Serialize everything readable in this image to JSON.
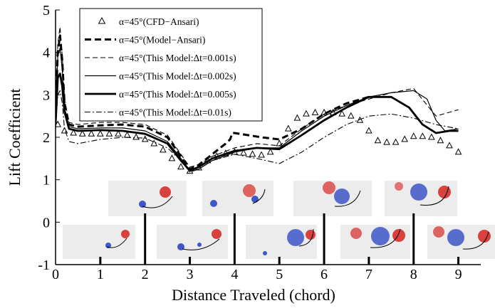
{
  "chart_data": {
    "type": "line",
    "xlabel": "Distance Traveled (chord)",
    "ylabel": "Lift Coefficient",
    "xlim": [
      0,
      9.5
    ],
    "ylim": [
      -1,
      5
    ],
    "xticks": [
      "0",
      "1",
      "2",
      "3",
      "4",
      "5",
      "6",
      "7",
      "8",
      "9"
    ],
    "yticks": [
      "-1",
      "0",
      "1",
      "2",
      "3",
      "4",
      "5"
    ],
    "grid": false,
    "legend_position": "top-left",
    "series": [
      {
        "name": "α=45°(CFD−Ansari)",
        "style": "triangle-markers",
        "color": "#000000",
        "x": [
          0.05,
          0.2,
          0.4,
          0.6,
          0.8,
          1.0,
          1.2,
          1.4,
          1.6,
          1.8,
          2.0,
          2.2,
          2.4,
          2.6,
          2.8,
          3.0,
          3.2,
          3.4,
          3.6,
          3.8,
          4.0,
          4.2,
          4.4,
          4.6,
          4.8,
          5.0,
          5.2,
          5.4,
          5.6,
          5.8,
          6.0,
          6.2,
          6.4,
          6.6,
          6.8,
          7.0,
          7.2,
          7.4,
          7.6,
          7.8,
          8.0,
          8.2,
          8.4,
          8.6,
          8.8,
          9.0
        ],
        "y": [
          2.3,
          2.15,
          2.1,
          2.08,
          2.08,
          2.08,
          2.08,
          2.08,
          2.05,
          2.0,
          1.95,
          1.85,
          1.7,
          1.5,
          1.3,
          1.2,
          1.28,
          1.45,
          1.55,
          1.62,
          1.65,
          1.63,
          1.6,
          1.58,
          1.65,
          1.85,
          2.2,
          2.45,
          2.55,
          2.58,
          2.58,
          2.58,
          2.55,
          2.5,
          2.4,
          2.15,
          1.92,
          1.88,
          1.88,
          1.95,
          2.02,
          2.02,
          2.0,
          1.92,
          1.8,
          1.65
        ]
      },
      {
        "name": "α=45°(Model−Ansari)",
        "style": "thick-dashed",
        "color": "#000000",
        "x": [
          0.0,
          0.05,
          0.1,
          0.15,
          0.2,
          0.3,
          0.5,
          1.0,
          1.5,
          2.0,
          2.5,
          2.8,
          3.0,
          3.2,
          3.5,
          3.8,
          3.9,
          3.95,
          4.0,
          4.3,
          4.6,
          5.0,
          5.5,
          6.0,
          6.5,
          7.0
        ],
        "y": [
          2.5,
          4.0,
          4.4,
          3.8,
          2.8,
          2.3,
          2.25,
          2.28,
          2.3,
          2.25,
          2.0,
          1.55,
          1.25,
          1.35,
          1.6,
          1.85,
          1.95,
          2.1,
          2.1,
          2.05,
          2.0,
          1.95,
          2.2,
          2.55,
          2.8,
          2.95
        ]
      },
      {
        "name": "α=45°(This Model:Δt=0.001s)",
        "style": "thin-dashed",
        "color": "#000000",
        "x": [
          0.0,
          0.05,
          0.1,
          0.15,
          0.2,
          0.3,
          0.5,
          1.0,
          1.5,
          2.0,
          2.5,
          2.8,
          3.0,
          3.2,
          3.5,
          4.0,
          4.5,
          5.0,
          5.5,
          6.0,
          6.5,
          7.0,
          7.5,
          8.0,
          8.5,
          9.0
        ],
        "y": [
          2.6,
          4.2,
          4.6,
          3.9,
          2.9,
          2.35,
          2.3,
          2.35,
          2.35,
          2.3,
          2.05,
          1.6,
          1.3,
          1.35,
          1.55,
          1.75,
          1.85,
          1.8,
          2.2,
          2.55,
          2.75,
          2.9,
          3.05,
          3.15,
          2.5,
          2.65
        ]
      },
      {
        "name": "α=45°(This Model:Δt=0.002s)",
        "style": "thin-solid",
        "color": "#000000",
        "x": [
          0.0,
          0.05,
          0.1,
          0.15,
          0.2,
          0.3,
          0.5,
          1.0,
          1.5,
          2.0,
          2.5,
          2.8,
          3.0,
          3.2,
          3.5,
          4.0,
          4.5,
          5.0,
          5.5,
          6.0,
          6.5,
          7.0,
          7.5,
          8.0,
          8.3,
          8.5,
          8.7,
          9.0
        ],
        "y": [
          2.4,
          3.9,
          4.1,
          3.6,
          2.7,
          2.25,
          2.2,
          2.22,
          2.22,
          2.15,
          1.9,
          1.5,
          1.2,
          1.25,
          1.45,
          1.65,
          1.75,
          1.75,
          2.15,
          2.5,
          2.75,
          2.95,
          3.05,
          3.1,
          2.9,
          2.4,
          2.15,
          2.2
        ]
      },
      {
        "name": "α=45°(This Model:Δt=0.005s)",
        "style": "thick-solid",
        "color": "#000000",
        "x": [
          0.0,
          0.05,
          0.1,
          0.15,
          0.2,
          0.3,
          0.5,
          1.0,
          1.5,
          2.0,
          2.5,
          2.8,
          3.0,
          3.2,
          3.5,
          4.0,
          4.5,
          5.0,
          5.5,
          6.0,
          6.5,
          7.0,
          7.5,
          7.9,
          8.2,
          8.5,
          8.8,
          9.0
        ],
        "y": [
          2.3,
          3.4,
          3.5,
          3.2,
          2.6,
          2.2,
          2.15,
          2.17,
          2.15,
          2.08,
          1.85,
          1.45,
          1.22,
          1.3,
          1.5,
          1.68,
          1.75,
          1.72,
          2.05,
          2.4,
          2.7,
          2.95,
          2.95,
          2.7,
          2.3,
          2.1,
          2.15,
          2.15
        ]
      },
      {
        "name": "α=45°(This Model:Δt=0.01s)",
        "style": "dash-dot",
        "color": "#000000",
        "x": [
          0.0,
          0.05,
          0.1,
          0.15,
          0.2,
          0.3,
          0.5,
          1.0,
          1.5,
          2.0,
          2.5,
          2.8,
          3.0,
          3.2,
          3.5,
          4.0,
          4.5,
          5.0,
          5.5,
          6.0,
          6.5,
          7.0,
          7.5,
          8.0,
          8.5,
          9.0
        ],
        "y": [
          2.2,
          3.0,
          3.1,
          2.8,
          2.2,
          1.9,
          1.85,
          1.95,
          2.0,
          1.98,
          1.75,
          1.45,
          1.18,
          1.25,
          1.45,
          1.6,
          1.5,
          1.38,
          1.65,
          2.0,
          2.3,
          2.5,
          2.55,
          2.45,
          2.3,
          2.2
        ]
      }
    ],
    "vertical_markers_x": [
      1,
      2,
      3,
      4,
      5,
      6,
      7,
      8,
      9
    ],
    "colors": {
      "line": "#000000",
      "vortex_red": "#d9413e",
      "vortex_blue": "#3d56c8",
      "inset_bg": "#ececec"
    }
  }
}
